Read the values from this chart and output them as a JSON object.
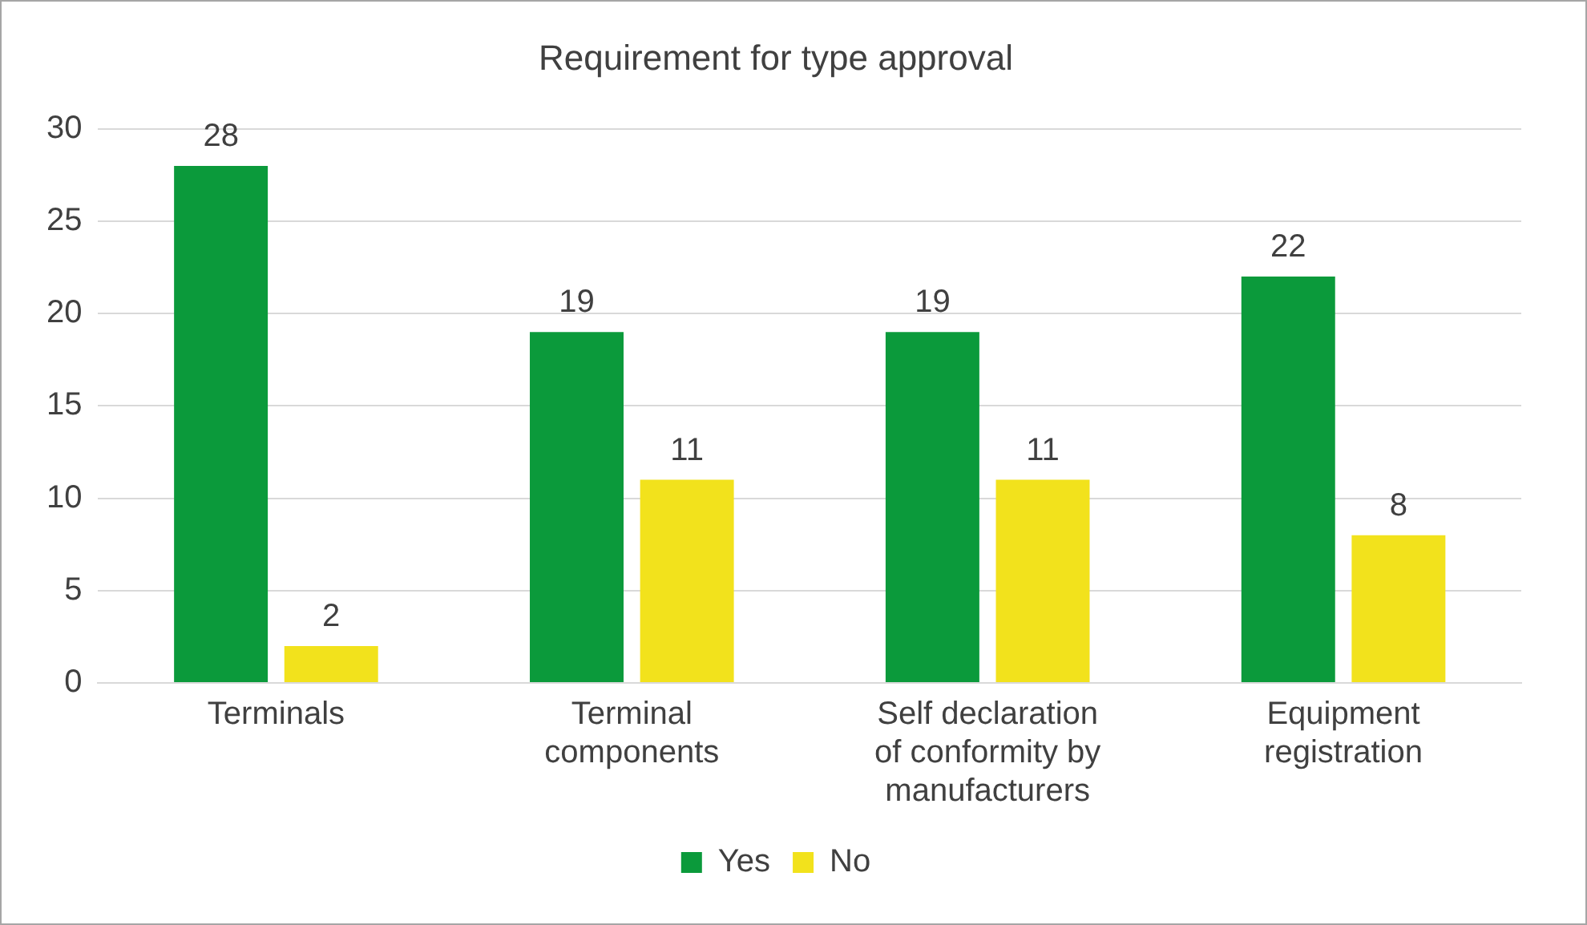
{
  "chart_data": {
    "type": "bar",
    "title": "Requirement for type approval",
    "categories": [
      "Terminals",
      "Terminal components",
      "Self declaration of conformity by manufacturers",
      "Equipment registration"
    ],
    "series": [
      {
        "name": "Yes",
        "color": "#0b9a3b",
        "values": [
          28,
          19,
          19,
          22
        ]
      },
      {
        "name": "No",
        "color": "#f2e21c",
        "values": [
          2,
          11,
          11,
          8
        ]
      }
    ],
    "ylim": [
      0,
      30
    ],
    "yticks": [
      0,
      5,
      10,
      15,
      20,
      25,
      30
    ],
    "grid": "y",
    "legend": "bottom",
    "data_labels": true
  }
}
